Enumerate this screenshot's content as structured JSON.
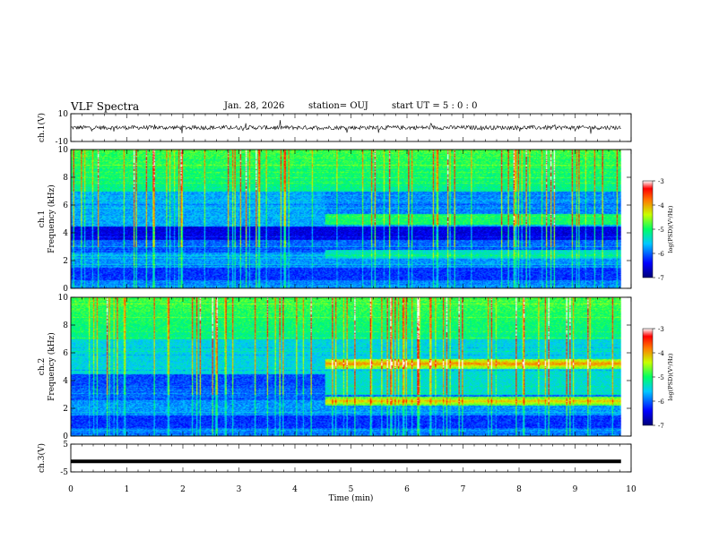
{
  "header": {
    "title": "VLF Spectra",
    "date": "Jan. 28, 2026",
    "station": "station= OUJ",
    "start": "start  UT =   5 : 0  : 0"
  },
  "chart_data": {
    "type": "heatmap",
    "xlabel": "Time  (min)",
    "xlim": [
      0,
      10
    ],
    "xticks": [
      "0",
      "1",
      "2",
      "3",
      "4",
      "5",
      "6",
      "7",
      "8",
      "9",
      "10"
    ],
    "panels": [
      {
        "id": "ch1v",
        "kind": "waveform",
        "ylabel": "ch.1(V)",
        "ylim": [
          -10,
          10
        ],
        "yticks": [
          "10",
          "-10"
        ]
      },
      {
        "id": "ch1",
        "kind": "spectrogram",
        "ylabel": "Frequency  (kHz)",
        "ylabel2": "ch.1",
        "ylim": [
          0,
          10
        ],
        "yticks": [
          "0",
          "2",
          "4",
          "6",
          "8",
          "10"
        ],
        "colorbar": {
          "label": "log(PSD)(V²/Hz)",
          "range": [
            -7,
            -3
          ],
          "ticks": [
            "-3",
            "-4",
            "-5",
            "-6",
            "-7"
          ]
        },
        "event_time_min": 4.55
      },
      {
        "id": "ch2",
        "kind": "spectrogram",
        "ylabel": "Frequency  (kHz)",
        "ylabel2": "ch.2",
        "ylim": [
          0,
          10
        ],
        "yticks": [
          "0",
          "2",
          "4",
          "6",
          "8",
          "10"
        ],
        "colorbar": {
          "label": "log(PSD)(V²/Hz)",
          "range": [
            -7,
            -3
          ],
          "ticks": [
            "-3",
            "-4",
            "-5",
            "-6",
            "-7"
          ]
        },
        "event_time_min": 4.55,
        "bands_after_event_khz": [
          5.2,
          2.5
        ]
      },
      {
        "id": "ch3v",
        "kind": "waveform",
        "ylabel": "ch.3(V)",
        "ylim": [
          -5,
          5
        ],
        "yticks": [
          "5",
          "-5"
        ],
        "flat_value": -1.2
      }
    ]
  }
}
